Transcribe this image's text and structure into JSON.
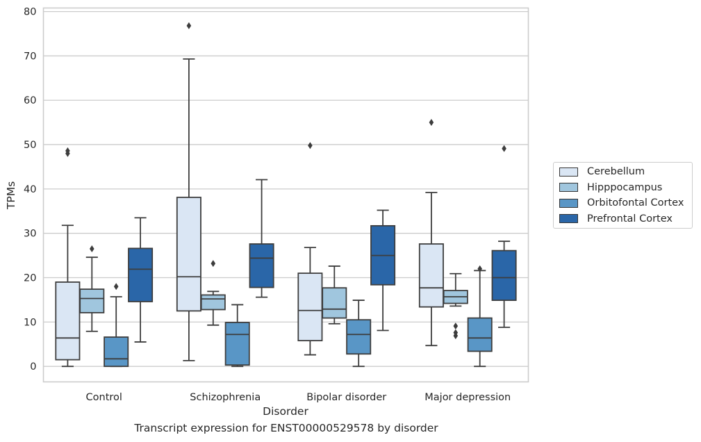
{
  "chart_data": {
    "type": "box",
    "xlabel": "Disorder",
    "ylabel": "TPMs",
    "caption": "Transcript expression for ENST00000529578 by disorder",
    "categories": [
      "Control",
      "Schizophrenia",
      "Bipolar disorder",
      "Major depression"
    ],
    "ylim": [
      -3.5,
      80.8
    ],
    "yticks": [
      0,
      10,
      20,
      30,
      40,
      50,
      60,
      70,
      80
    ],
    "grid": true,
    "legend_position": "right, vertically centered",
    "series": [
      {
        "name": "Cerebellum",
        "color": "#dae6f4",
        "boxes": [
          {
            "whislo": 0,
            "q1": 1.5,
            "med": 6.4,
            "q3": 19,
            "whishi": 31.8,
            "fliers": [
              48,
              48.6
            ]
          },
          {
            "whislo": 1.3,
            "q1": 12.5,
            "med": 20.2,
            "q3": 38.1,
            "whishi": 69.3,
            "fliers": [
              76.8
            ]
          },
          {
            "whislo": 2.6,
            "q1": 5.8,
            "med": 12.6,
            "q3": 21,
            "whishi": 26.8,
            "fliers": [
              49.8
            ]
          },
          {
            "whislo": 4.7,
            "q1": 13.4,
            "med": 17.7,
            "q3": 27.6,
            "whishi": 39.2,
            "fliers": [
              55
            ]
          }
        ]
      },
      {
        "name": "Hipppocampus",
        "color": "#a0c6de",
        "boxes": [
          {
            "whislo": 7.9,
            "q1": 12.1,
            "med": 15.3,
            "q3": 17.4,
            "whishi": 24.6,
            "fliers": [
              26.5
            ]
          },
          {
            "whislo": 9.3,
            "q1": 12.8,
            "med": 15.2,
            "q3": 16.1,
            "whishi": 16.9,
            "fliers": [
              23.2
            ]
          },
          {
            "whislo": 9.6,
            "q1": 10.9,
            "med": 12.9,
            "q3": 17.7,
            "whishi": 22.6,
            "fliers": []
          },
          {
            "whislo": 13.6,
            "q1": 14.2,
            "med": 15.7,
            "q3": 17.1,
            "whishi": 20.9,
            "fliers": [
              6.9,
              7.6,
              9.1
            ]
          }
        ]
      },
      {
        "name": "Orbitofontal Cortex",
        "color": "#5996c6",
        "boxes": [
          {
            "whislo": 0,
            "q1": 0,
            "med": 1.7,
            "q3": 6.6,
            "whishi": 15.7,
            "fliers": [
              18
            ]
          },
          {
            "whislo": 0,
            "q1": 0.3,
            "med": 7.2,
            "q3": 9.9,
            "whishi": 13.9,
            "fliers": []
          },
          {
            "whislo": 0,
            "q1": 2.8,
            "med": 7.2,
            "q3": 10.5,
            "whishi": 14.9,
            "fliers": []
          },
          {
            "whislo": 0,
            "q1": 3.4,
            "med": 6.4,
            "q3": 10.9,
            "whishi": 21.6,
            "fliers": [
              22
            ]
          }
        ]
      },
      {
        "name": "Prefrontal Cortex",
        "color": "#2a66a8",
        "boxes": [
          {
            "whislo": 5.5,
            "q1": 14.6,
            "med": 21.9,
            "q3": 26.6,
            "whishi": 33.5,
            "fliers": []
          },
          {
            "whislo": 15.6,
            "q1": 17.8,
            "med": 24.4,
            "q3": 27.6,
            "whishi": 42.1,
            "fliers": []
          },
          {
            "whislo": 8.1,
            "q1": 18.4,
            "med": 25,
            "q3": 31.7,
            "whishi": 35.2,
            "fliers": []
          },
          {
            "whislo": 8.8,
            "q1": 14.9,
            "med": 20,
            "q3": 26.1,
            "whishi": 28.2,
            "fliers": [
              49.1
            ]
          }
        ]
      }
    ]
  }
}
